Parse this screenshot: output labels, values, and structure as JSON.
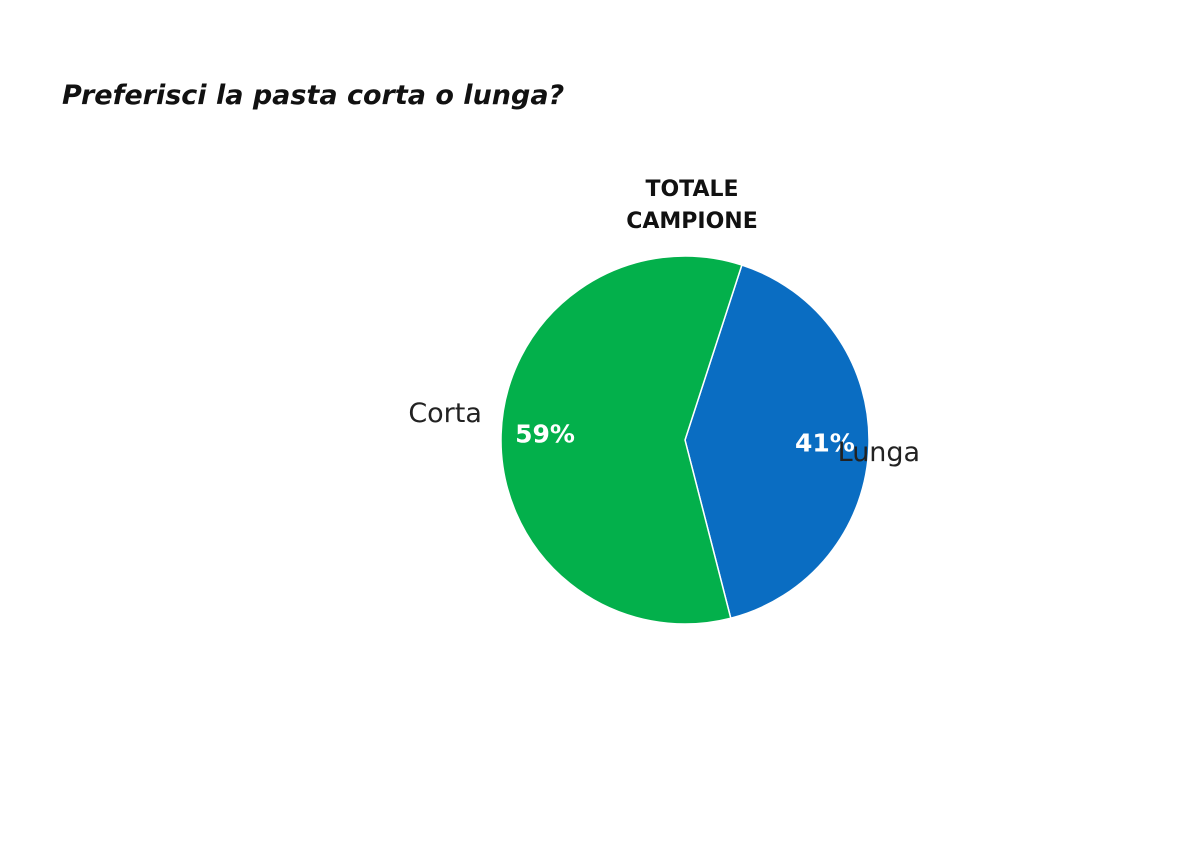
{
  "question": "Preferisci la pasta corta o lunga?",
  "chart_data": {
    "type": "pie",
    "title_lines": [
      "TOTALE",
      "CAMPIONE"
    ],
    "slices": [
      {
        "label": "Lunga",
        "value": 41,
        "value_label": "41%",
        "color": "#0A6DC2"
      },
      {
        "label": "Corta",
        "value": 59,
        "value_label": "59%",
        "color": "#03B04B"
      }
    ],
    "start_angle_deg": 18,
    "direction": "clockwise",
    "legend": "none"
  }
}
